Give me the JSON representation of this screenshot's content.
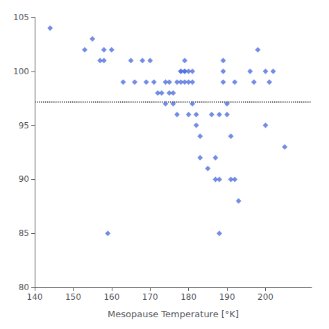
{
  "chart_data": {
    "type": "scatter",
    "xlabel": "Mesopause Temperature [°K]",
    "x": [
      144,
      153,
      155,
      157,
      158,
      158,
      160,
      163,
      165,
      166,
      168,
      169,
      170,
      171,
      172,
      173,
      174,
      174,
      175,
      175,
      176,
      176,
      177,
      177,
      178,
      178,
      178,
      179,
      179,
      179,
      179,
      180,
      180,
      180,
      181,
      181,
      181,
      182,
      182,
      183,
      183,
      185,
      186,
      187,
      187,
      188,
      188,
      189,
      189,
      189,
      190,
      190,
      191,
      191,
      192,
      192,
      193,
      196,
      197,
      198,
      200,
      201,
      202,
      205,
      159,
      188,
      200
    ],
    "values": [
      104,
      102,
      103,
      101,
      102,
      101,
      102,
      99,
      101,
      99,
      101,
      99,
      101,
      99,
      98,
      98,
      97,
      99,
      98,
      99,
      97,
      98,
      96,
      99,
      100,
      99,
      100,
      99,
      100,
      100,
      101,
      100,
      99,
      96,
      99,
      100,
      97,
      96,
      95,
      94,
      92,
      91,
      96,
      90,
      92,
      96,
      90,
      99,
      100,
      101,
      96,
      97,
      94,
      90,
      90,
      99,
      88,
      100,
      99,
      102,
      100,
      99,
      100,
      93,
      85,
      85,
      95
    ],
    "marker": "diamond",
    "xlim": [
      140,
      212
    ],
    "ylim": [
      80,
      105
    ],
    "xticks": [
      140,
      150,
      160,
      170,
      180,
      190,
      200
    ],
    "yticks": [
      80,
      85,
      90,
      95,
      100,
      105
    ],
    "grid": false,
    "reference_line": {
      "y": 97.2,
      "line_style": "dotted"
    }
  }
}
